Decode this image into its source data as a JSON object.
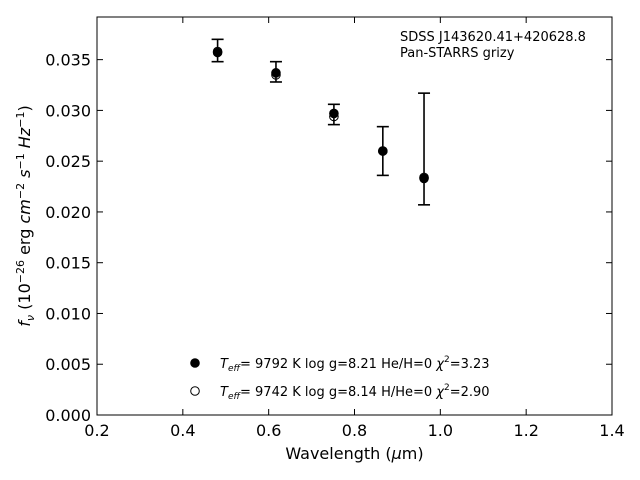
{
  "chart_data": {
    "type": "scatter",
    "title": "",
    "xlabel": "Wavelength (μm)",
    "ylabel": "f_ν (10^−26 erg cm^−2 s^−1 Hz^−1)",
    "xlim": [
      0.2,
      1.4
    ],
    "ylim": [
      0.0,
      0.0392
    ],
    "xticks": [
      0.2,
      0.4,
      0.6,
      0.8,
      1.0,
      1.2,
      1.4
    ],
    "xtick_labels": [
      "0.2",
      "0.4",
      "0.6",
      "0.8",
      "1.0",
      "1.2",
      "1.4"
    ],
    "yticks": [
      0.0,
      0.005,
      0.01,
      0.015,
      0.02,
      0.025,
      0.03,
      0.035
    ],
    "ytick_labels": [
      "0.000",
      "0.005",
      "0.010",
      "0.015",
      "0.020",
      "0.025",
      "0.030",
      "0.035"
    ],
    "annotation_lines": [
      "SDSS J143620.41+420628.8",
      "Pan-STARRS grizy"
    ],
    "observed": {
      "x": [
        0.481,
        0.617,
        0.752,
        0.866,
        0.962
      ],
      "y": [
        0.0359,
        0.0338,
        0.0296,
        0.026,
        0.0262
      ],
      "yerr": [
        0.0011,
        0.001,
        0.001,
        0.0024,
        0.0055
      ]
    },
    "series": [
      {
        "marker": "filled",
        "x": [
          0.481,
          0.617,
          0.752,
          0.866,
          0.962
        ],
        "y": [
          0.0357,
          0.0337,
          0.0297,
          0.026,
          0.0233
        ]
      },
      {
        "marker": "open",
        "x": [
          0.481,
          0.617,
          0.752,
          0.866,
          0.962
        ],
        "y": [
          0.0358,
          0.0335,
          0.0294,
          0.026,
          0.0234
        ]
      }
    ],
    "legend": [
      {
        "marker": "filled",
        "teff_value": "9792",
        "logg": "8.21",
        "composition": "He/H=0",
        "chi2": "3.23"
      },
      {
        "marker": "open",
        "teff_value": "9742",
        "logg": "8.14",
        "composition": "H/He=0",
        "chi2": "2.90"
      }
    ],
    "legend_position": "lower-center",
    "grid": false
  }
}
